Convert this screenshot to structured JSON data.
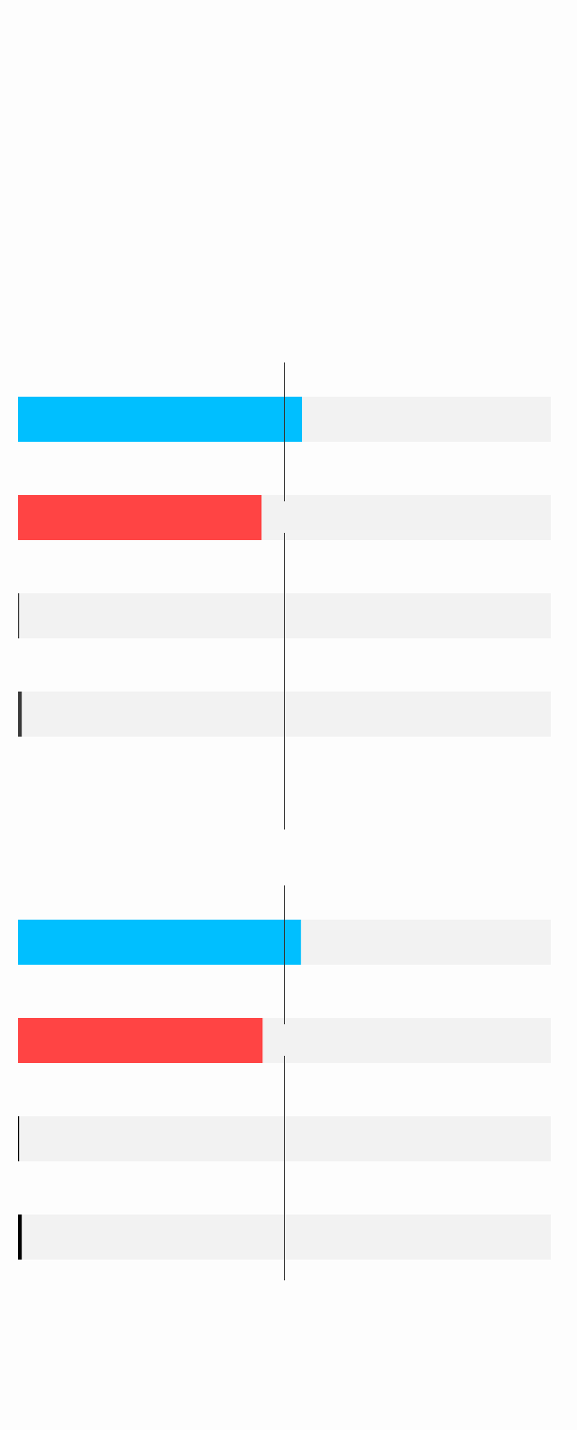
{
  "range": [
    0,
    100
  ],
  "groups": [
    {
      "marker": 50,
      "bars": [
        {
          "value": 53.3,
          "color": "#00bfff"
        },
        {
          "value": 45.7,
          "color": "#ff4444"
        },
        {
          "value": 0.2,
          "color": "#333333"
        },
        {
          "value": 0.7,
          "color": "#3a3a3a"
        }
      ]
    },
    {
      "marker": 50,
      "bars": [
        {
          "value": 53.1,
          "color": "#00bfff"
        },
        {
          "value": 45.9,
          "color": "#ff4444"
        },
        {
          "value": 0.2,
          "color": "#000000"
        },
        {
          "value": 0.7,
          "color": "#000000"
        }
      ]
    }
  ]
}
